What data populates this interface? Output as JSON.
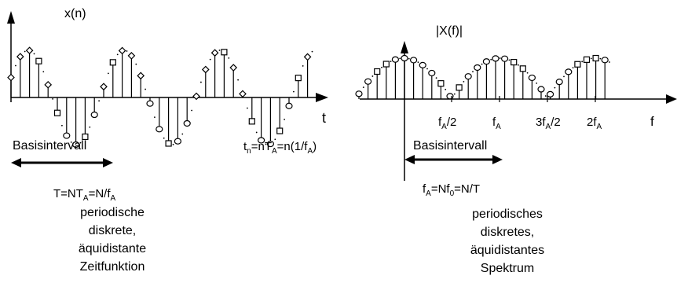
{
  "left_plot": {
    "y_label": "x(n)",
    "x_label": "t",
    "interval_label": "Basisintervall",
    "time_formula": {
      "t": "t",
      "n_sub": "n",
      "eq1": "=nT",
      "A1": "A",
      "eq2": "=n(1/f",
      "A2": "A",
      "close": ")"
    },
    "period_formula": {
      "p1": "T=NT",
      "A1": "A",
      "p2": "=N/f",
      "A2": "A"
    },
    "description": [
      "periodische",
      "diskrete,",
      "äquidistante",
      "Zeitfunktion"
    ]
  },
  "right_plot": {
    "y_label": "|X(f)|",
    "x_label": "f",
    "tick_labels": [
      {
        "pre": "f",
        "sub": "A",
        "post": "/2"
      },
      {
        "pre": "f",
        "sub": "A",
        "post": ""
      },
      {
        "pre": "3f",
        "sub": "A",
        "post": "/2"
      },
      {
        "pre": "2f",
        "sub": "A",
        "post": ""
      }
    ],
    "interval_label": "Basisintervall",
    "freq_formula": {
      "f": "f",
      "A": "A",
      "eq1": "=Nf",
      "zero": "0",
      "eq2": "=N/T"
    },
    "description": [
      "periodisches",
      "diskretes,",
      "äquidistantes",
      "Spektrum"
    ]
  }
}
